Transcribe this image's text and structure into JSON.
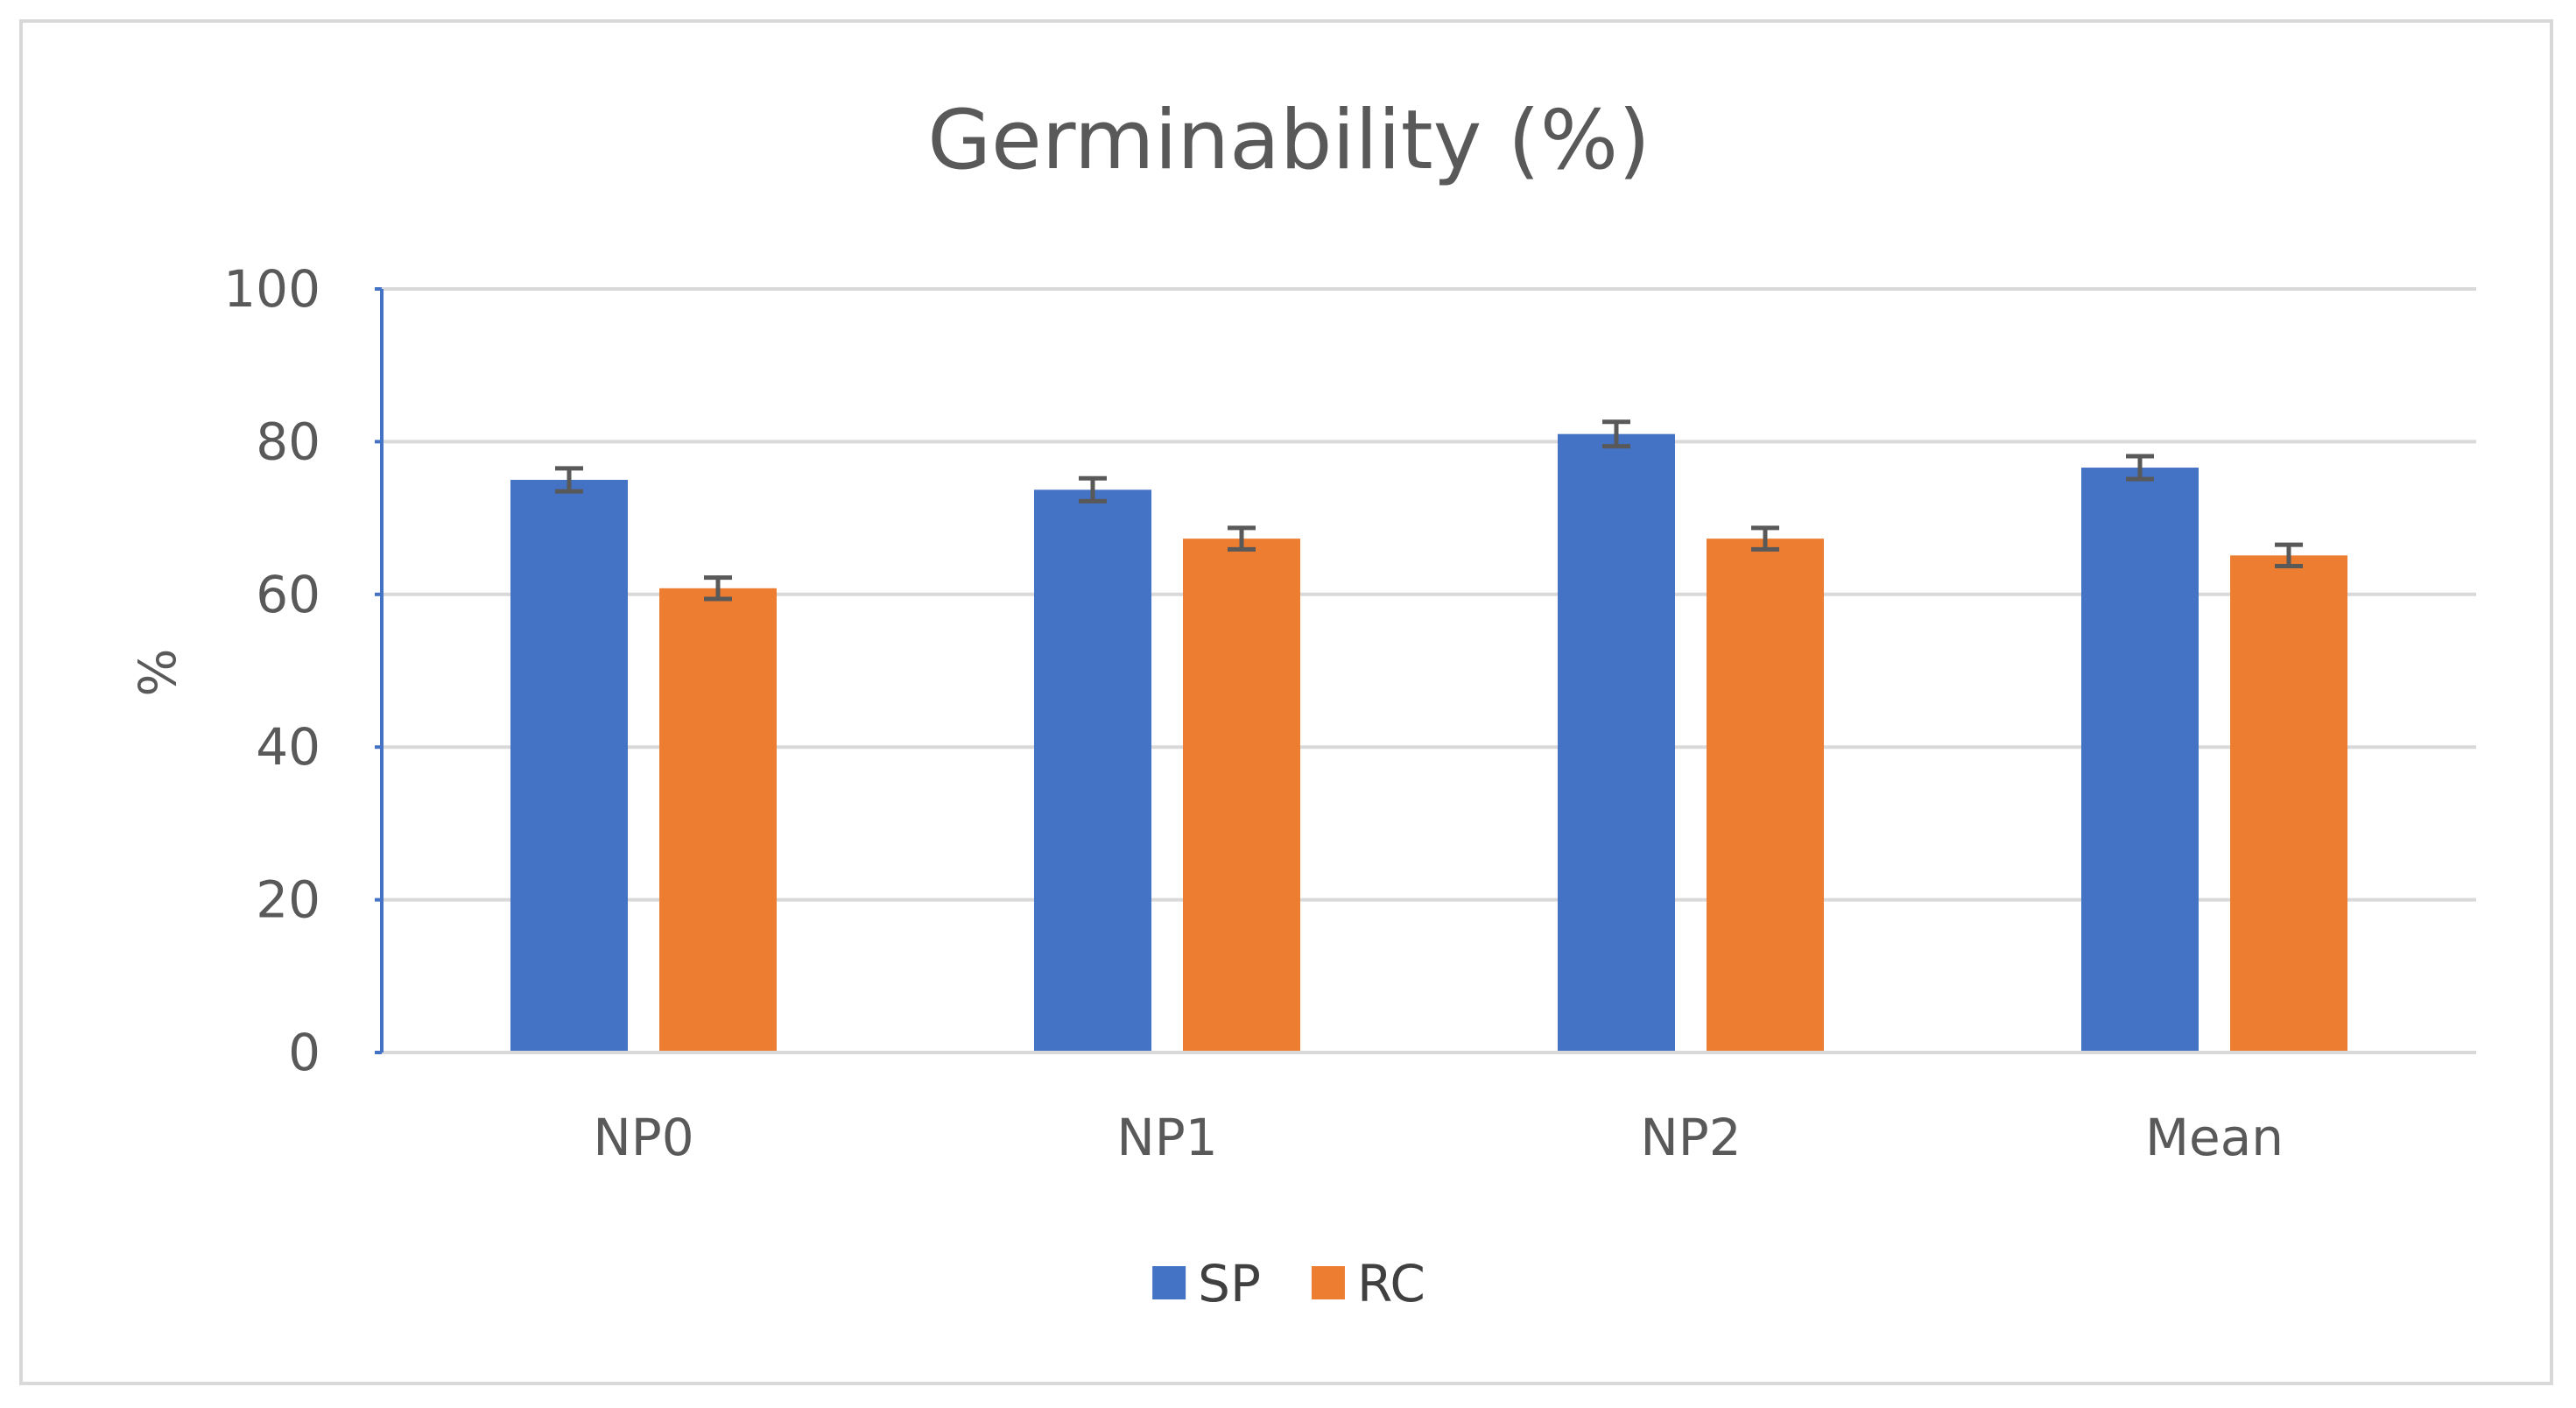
{
  "chart_data": {
    "type": "bar",
    "title": "Germinability (%)",
    "xlabel": "",
    "ylabel": "%",
    "ylim": [
      0,
      100
    ],
    "yticks": [
      0,
      20,
      40,
      60,
      80,
      100
    ],
    "grid": true,
    "legend_position": "bottom",
    "categories": [
      "NP0",
      "NP1",
      "NP2",
      "Mean"
    ],
    "series": [
      {
        "name": "SP",
        "color": "#4472C4",
        "values": [
          75,
          73.7,
          81,
          76.6
        ],
        "errors": [
          1.5,
          1.5,
          1.6,
          1.5
        ]
      },
      {
        "name": "RC",
        "color": "#ED7D31",
        "values": [
          60.8,
          67.3,
          67.3,
          65.1
        ],
        "errors": [
          1.4,
          1.4,
          1.4,
          1.4
        ]
      }
    ]
  }
}
